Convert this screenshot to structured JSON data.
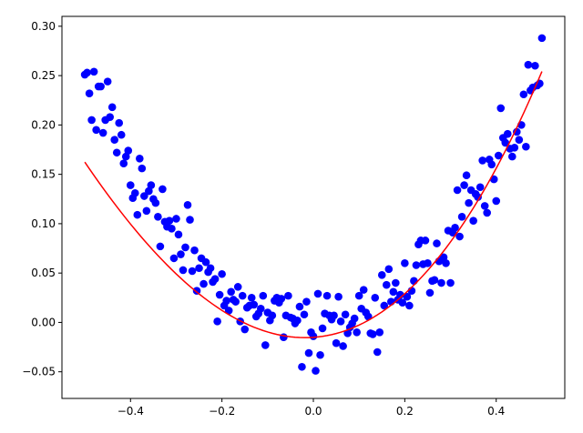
{
  "chart_data": {
    "type": "scatter",
    "title": "",
    "xlabel": "",
    "ylabel": "",
    "xlim": [
      -0.55,
      0.55
    ],
    "ylim": [
      -0.077,
      0.31
    ],
    "grid": false,
    "x_ticks": [
      -0.4,
      -0.2,
      0.0,
      0.2,
      0.4
    ],
    "x_tick_labels": [
      "−0.4",
      "−0.2",
      "0.0",
      "0.2",
      "0.4"
    ],
    "y_ticks": [
      -0.05,
      0.0,
      0.05,
      0.1,
      0.15,
      0.2,
      0.25,
      0.3
    ],
    "y_tick_labels": [
      "−0.05",
      "0.00",
      "0.05",
      "0.10",
      "0.15",
      "0.20",
      "0.25",
      "0.30"
    ],
    "colors": {
      "points": "#0000ff",
      "fit_line": "#ff0000",
      "axes": "#000000"
    },
    "series": [
      {
        "kind": "scatter",
        "points": [
          [
            -0.5,
            0.251
          ],
          [
            -0.495,
            0.253
          ],
          [
            -0.49,
            0.232
          ],
          [
            -0.485,
            0.205
          ],
          [
            -0.48,
            0.254
          ],
          [
            -0.475,
            0.195
          ],
          [
            -0.47,
            0.239
          ],
          [
            -0.465,
            0.239
          ],
          [
            -0.46,
            0.192
          ],
          [
            -0.455,
            0.205
          ],
          [
            -0.45,
            0.244
          ],
          [
            -0.445,
            0.208
          ],
          [
            -0.44,
            0.218
          ],
          [
            -0.435,
            0.185
          ],
          [
            -0.43,
            0.172
          ],
          [
            -0.425,
            0.202
          ],
          [
            -0.42,
            0.19
          ],
          [
            -0.415,
            0.161
          ],
          [
            -0.41,
            0.168
          ],
          [
            -0.405,
            0.174
          ],
          [
            -0.4,
            0.139
          ],
          [
            -0.395,
            0.126
          ],
          [
            -0.39,
            0.131
          ],
          [
            -0.385,
            0.109
          ],
          [
            -0.38,
            0.166
          ],
          [
            -0.375,
            0.156
          ],
          [
            -0.37,
            0.128
          ],
          [
            -0.365,
            0.113
          ],
          [
            -0.36,
            0.133
          ],
          [
            -0.355,
            0.139
          ],
          [
            -0.35,
            0.125
          ],
          [
            -0.345,
            0.121
          ],
          [
            -0.34,
            0.107
          ],
          [
            -0.335,
            0.077
          ],
          [
            -0.33,
            0.135
          ],
          [
            -0.325,
            0.102
          ],
          [
            -0.32,
            0.097
          ],
          [
            -0.315,
            0.103
          ],
          [
            -0.31,
            0.095
          ],
          [
            -0.305,
            0.065
          ],
          [
            -0.3,
            0.105
          ],
          [
            -0.295,
            0.089
          ],
          [
            -0.29,
            0.069
          ],
          [
            -0.285,
            0.053
          ],
          [
            -0.28,
            0.076
          ],
          [
            -0.275,
            0.119
          ],
          [
            -0.27,
            0.104
          ],
          [
            -0.265,
            0.052
          ],
          [
            -0.26,
            0.073
          ],
          [
            -0.255,
            0.032
          ],
          [
            -0.25,
            0.055
          ],
          [
            -0.245,
            0.065
          ],
          [
            -0.24,
            0.039
          ],
          [
            -0.235,
            0.061
          ],
          [
            -0.23,
            0.051
          ],
          [
            -0.225,
            0.055
          ],
          [
            -0.22,
            0.041
          ],
          [
            -0.215,
            0.044
          ],
          [
            -0.21,
            0.001
          ],
          [
            -0.205,
            0.028
          ],
          [
            -0.2,
            0.049
          ],
          [
            -0.195,
            0.017
          ],
          [
            -0.19,
            0.022
          ],
          [
            -0.185,
            0.012
          ],
          [
            -0.18,
            0.031
          ],
          [
            -0.175,
            0.023
          ],
          [
            -0.17,
            0.021
          ],
          [
            -0.165,
            0.036
          ],
          [
            -0.16,
            0.001
          ],
          [
            -0.155,
            0.027
          ],
          [
            -0.15,
            -0.007
          ],
          [
            -0.145,
            0.015
          ],
          [
            -0.14,
            0.017
          ],
          [
            -0.135,
            0.025
          ],
          [
            -0.13,
            0.018
          ],
          [
            -0.125,
            0.006
          ],
          [
            -0.12,
            0.009
          ],
          [
            -0.115,
            0.014
          ],
          [
            -0.11,
            0.027
          ],
          [
            -0.105,
            -0.023
          ],
          [
            -0.1,
            0.01
          ],
          [
            -0.095,
            0.002
          ],
          [
            -0.09,
            0.007
          ],
          [
            -0.085,
            0.022
          ],
          [
            -0.08,
            0.025
          ],
          [
            -0.075,
            0.02
          ],
          [
            -0.07,
            0.024
          ],
          [
            -0.065,
            -0.015
          ],
          [
            -0.06,
            0.007
          ],
          [
            -0.055,
            0.027
          ],
          [
            -0.05,
            0.005
          ],
          [
            -0.045,
            0.004
          ],
          [
            -0.04,
            -0.001
          ],
          [
            -0.035,
            0.002
          ],
          [
            -0.03,
            0.016
          ],
          [
            -0.025,
            -0.045
          ],
          [
            -0.02,
            0.008
          ],
          [
            -0.015,
            0.021
          ],
          [
            -0.01,
            -0.031
          ],
          [
            -0.005,
            -0.01
          ],
          [
            0.0,
            -0.014
          ],
          [
            0.005,
            -0.049
          ],
          [
            0.01,
            0.029
          ],
          [
            0.015,
            -0.033
          ],
          [
            0.02,
            -0.006
          ],
          [
            0.025,
            0.009
          ],
          [
            0.03,
            0.027
          ],
          [
            0.035,
            0.007
          ],
          [
            0.04,
            0.003
          ],
          [
            0.045,
            0.007
          ],
          [
            0.05,
            -0.021
          ],
          [
            0.055,
            0.026
          ],
          [
            0.06,
            0.001
          ],
          [
            0.065,
            -0.024
          ],
          [
            0.07,
            0.008
          ],
          [
            0.075,
            -0.011
          ],
          [
            0.08,
            -0.005
          ],
          [
            0.085,
            -0.001
          ],
          [
            0.09,
            0.004
          ],
          [
            0.095,
            -0.01
          ],
          [
            0.1,
            0.027
          ],
          [
            0.105,
            0.014
          ],
          [
            0.11,
            0.033
          ],
          [
            0.115,
            0.01
          ],
          [
            0.12,
            0.006
          ],
          [
            0.125,
            -0.011
          ],
          [
            0.13,
            -0.012
          ],
          [
            0.135,
            0.025
          ],
          [
            0.14,
            -0.03
          ],
          [
            0.145,
            -0.01
          ],
          [
            0.15,
            0.048
          ],
          [
            0.155,
            0.017
          ],
          [
            0.16,
            0.038
          ],
          [
            0.165,
            0.054
          ],
          [
            0.17,
            0.021
          ],
          [
            0.175,
            0.031
          ],
          [
            0.18,
            0.04
          ],
          [
            0.185,
            0.023
          ],
          [
            0.19,
            0.028
          ],
          [
            0.195,
            0.02
          ],
          [
            0.2,
            0.06
          ],
          [
            0.205,
            0.026
          ],
          [
            0.21,
            0.017
          ],
          [
            0.215,
            0.032
          ],
          [
            0.22,
            0.042
          ],
          [
            0.225,
            0.058
          ],
          [
            0.23,
            0.079
          ],
          [
            0.235,
            0.083
          ],
          [
            0.24,
            0.059
          ],
          [
            0.245,
            0.083
          ],
          [
            0.25,
            0.06
          ],
          [
            0.255,
            0.03
          ],
          [
            0.26,
            0.042
          ],
          [
            0.265,
            0.043
          ],
          [
            0.27,
            0.08
          ],
          [
            0.275,
            0.062
          ],
          [
            0.28,
            0.04
          ],
          [
            0.285,
            0.066
          ],
          [
            0.29,
            0.06
          ],
          [
            0.295,
            0.093
          ],
          [
            0.3,
            0.04
          ],
          [
            0.305,
            0.091
          ],
          [
            0.31,
            0.096
          ],
          [
            0.315,
            0.134
          ],
          [
            0.32,
            0.087
          ],
          [
            0.325,
            0.107
          ],
          [
            0.33,
            0.139
          ],
          [
            0.335,
            0.149
          ],
          [
            0.34,
            0.121
          ],
          [
            0.345,
            0.134
          ],
          [
            0.35,
            0.103
          ],
          [
            0.355,
            0.13
          ],
          [
            0.36,
            0.127
          ],
          [
            0.365,
            0.137
          ],
          [
            0.37,
            0.164
          ],
          [
            0.375,
            0.118
          ],
          [
            0.38,
            0.111
          ],
          [
            0.385,
            0.165
          ],
          [
            0.39,
            0.16
          ],
          [
            0.395,
            0.145
          ],
          [
            0.4,
            0.123
          ],
          [
            0.405,
            0.169
          ],
          [
            0.41,
            0.217
          ],
          [
            0.415,
            0.187
          ],
          [
            0.42,
            0.182
          ],
          [
            0.425,
            0.191
          ],
          [
            0.43,
            0.176
          ],
          [
            0.435,
            0.168
          ],
          [
            0.44,
            0.177
          ],
          [
            0.445,
            0.193
          ],
          [
            0.45,
            0.185
          ],
          [
            0.455,
            0.2
          ],
          [
            0.46,
            0.231
          ],
          [
            0.465,
            0.178
          ],
          [
            0.47,
            0.261
          ],
          [
            0.475,
            0.235
          ],
          [
            0.48,
            0.238
          ],
          [
            0.485,
            0.26
          ],
          [
            0.49,
            0.24
          ],
          [
            0.495,
            0.242
          ],
          [
            0.5,
            0.288
          ]
        ]
      },
      {
        "kind": "line",
        "fit": "cubic",
        "coefficients": [
          -0.01513,
          0.0327,
          0.8937,
          0.2367
        ],
        "x_range": [
          -0.5,
          0.5
        ]
      }
    ]
  }
}
